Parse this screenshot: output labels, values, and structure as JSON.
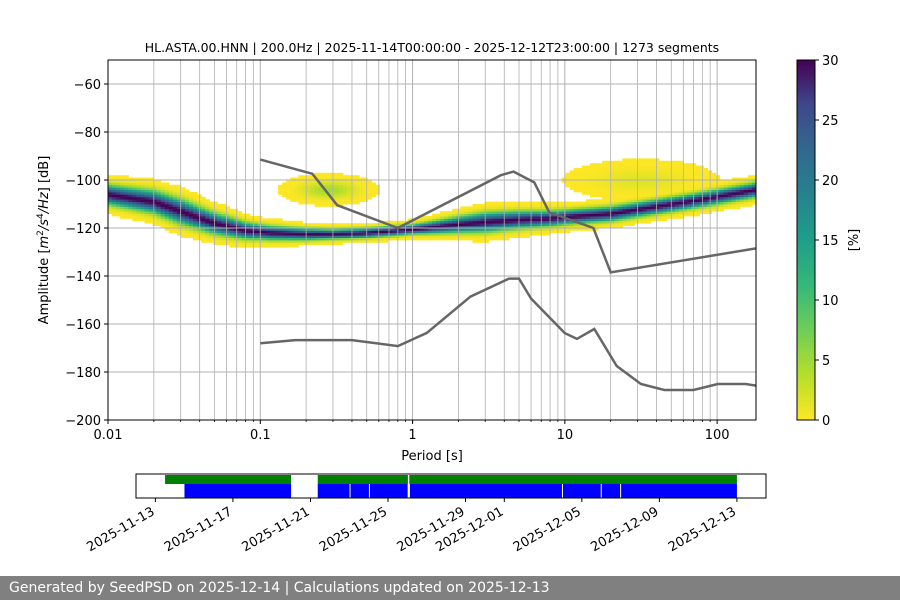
{
  "chart_data": [
    {
      "type": "heatmap",
      "title": "HL.ASTA.00.HNN | 200.0Hz | 2025-11-14T00:00:00 - 2025-12-12T23:00:00 | 1273 segments",
      "xlabel": "Period [s]",
      "ylabel_parts": {
        "pre": "Amplitude [",
        "m": "m",
        "e1": "2",
        "s": "/s",
        "e2": "4",
        "hz": "/Hz",
        "post": "] [dB]"
      },
      "x_scale": "log",
      "xlim": [
        0.01,
        180
      ],
      "ylim": [
        -200,
        -50
      ],
      "x_ticks": [
        0.01,
        0.1,
        1,
        10,
        100
      ],
      "x_tick_labels": [
        "0.01",
        "0.1",
        "1",
        "10",
        "100"
      ],
      "y_ticks": [
        -200,
        -180,
        -160,
        -140,
        -120,
        -100,
        -80,
        -60
      ],
      "y_tick_labels": [
        "−200",
        "−180",
        "−160",
        "−140",
        "−120",
        "−100",
        "−80",
        "−60"
      ],
      "grid": "log-x minor and major verticals, major horizontals",
      "colormap": "viridis_r",
      "colorbar": {
        "label": "[%]",
        "range": [
          0,
          30
        ],
        "ticks": [
          0,
          5,
          10,
          15,
          20,
          25,
          30
        ],
        "tick_labels": [
          "0",
          "5",
          "10",
          "15",
          "20",
          "25",
          "30"
        ]
      },
      "mode_curve": [
        [
          0.01,
          -106
        ],
        [
          0.02,
          -109
        ],
        [
          0.03,
          -113
        ],
        [
          0.05,
          -118
        ],
        [
          0.08,
          -121
        ],
        [
          0.12,
          -122
        ],
        [
          0.2,
          -122.5
        ],
        [
          0.3,
          -122.5
        ],
        [
          0.5,
          -122
        ],
        [
          0.8,
          -121
        ],
        [
          1.2,
          -120
        ],
        [
          2,
          -118.5
        ],
        [
          3,
          -117.5
        ],
        [
          5,
          -116.5
        ],
        [
          8,
          -116
        ],
        [
          12,
          -115
        ],
        [
          20,
          -114
        ],
        [
          40,
          -111
        ],
        [
          80,
          -108
        ],
        [
          180,
          -104
        ]
      ],
      "spread": [
        [
          0.01,
          4
        ],
        [
          0.03,
          5
        ],
        [
          0.06,
          4
        ],
        [
          0.1,
          3
        ],
        [
          0.3,
          2
        ],
        [
          1,
          2
        ],
        [
          3,
          4
        ],
        [
          10,
          3
        ],
        [
          30,
          3
        ],
        [
          100,
          3
        ],
        [
          180,
          3
        ]
      ],
      "secondary_lobes": [
        {
          "log_center": -0.55,
          "log_width": 0.2,
          "db_center": -104,
          "db_width": 4,
          "strength": 0.5
        },
        {
          "log_center": 1.5,
          "log_width": 0.35,
          "db_center": -100,
          "db_width": 6,
          "strength": 0.35
        }
      ],
      "high_noise_model": [
        [
          0.1,
          -91.5
        ],
        [
          0.22,
          -97.4
        ],
        [
          0.32,
          -110.5
        ],
        [
          0.8,
          -120
        ],
        [
          3.8,
          -98
        ],
        [
          4.6,
          -96.5
        ],
        [
          6.3,
          -101
        ],
        [
          7.9,
          -113.5
        ],
        [
          15.4,
          -120
        ],
        [
          20,
          -138.5
        ],
        [
          180,
          -128.5
        ]
      ],
      "low_noise_model": [
        [
          0.1,
          -168
        ],
        [
          0.17,
          -166.7
        ],
        [
          0.4,
          -166.7
        ],
        [
          0.8,
          -169.2
        ],
        [
          1.24,
          -163.7
        ],
        [
          2.4,
          -148.6
        ],
        [
          4.3,
          -141.1
        ],
        [
          5,
          -141.1
        ],
        [
          6,
          -149.4
        ],
        [
          10,
          -163.8
        ],
        [
          12,
          -166.2
        ],
        [
          15.6,
          -162.1
        ],
        [
          21.9,
          -177.5
        ],
        [
          31.6,
          -185
        ],
        [
          45,
          -187.5
        ],
        [
          70,
          -187.5
        ],
        [
          101,
          -185
        ],
        [
          154,
          -185
        ],
        [
          180,
          -185.7
        ]
      ]
    },
    {
      "type": "timeline",
      "x_ticks": [
        "2025-11-13",
        "2025-11-17",
        "2025-11-21",
        "2025-11-25",
        "2025-11-29",
        "2025-12-01",
        "2025-12-05",
        "2025-12-09",
        "2025-12-13"
      ],
      "x_range": [
        "2025-11-12T00:00",
        "2025-12-14T12:00"
      ],
      "colors": {
        "data": "#008000",
        "psd": "#0000ff"
      },
      "data_available": [
        [
          "2025-11-13T12:00",
          "2025-11-19T23:59"
        ],
        [
          "2025-11-21T09:00",
          "2025-12-13T00:00"
        ]
      ],
      "psd_available": [
        [
          "2025-11-14T12:00",
          "2025-11-19T23:59"
        ],
        [
          "2025-11-21T09:00",
          "2025-12-13T00:00"
        ]
      ],
      "psd_gaps": [
        "2025-11-23T01:00",
        "2025-11-24T01:00",
        "2025-11-26T01:00",
        "2025-11-26T02:30",
        "2025-12-04T00:00",
        "2025-12-06T00:00",
        "2025-12-07T00:00"
      ],
      "data_gaps": [
        "2025-11-26T01:30"
      ]
    }
  ],
  "footer": {
    "text": "Generated by SeedPSD on 2025-12-14 | Calculations updated on 2025-12-13"
  }
}
